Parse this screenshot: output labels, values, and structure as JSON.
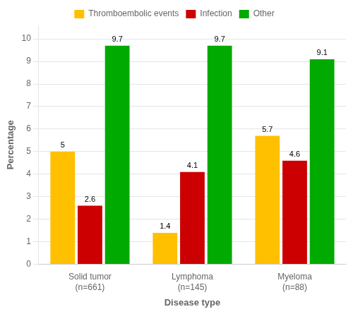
{
  "chart_data": {
    "type": "bar",
    "xlabel": "Disease type",
    "ylabel": "Percentage",
    "categories": [
      "Solid tumor\n(n=661)",
      "Lymphoma\n(n=145)",
      "Myeloma\n(n=88)"
    ],
    "series": [
      {
        "name": "Thromboembolic events",
        "color": "#FFC000",
        "values": [
          5.0,
          1.4,
          5.7
        ]
      },
      {
        "name": "Infection",
        "color": "#CC0000",
        "values": [
          2.6,
          4.1,
          4.6
        ]
      },
      {
        "name": "Other",
        "color": "#00AA00",
        "values": [
          9.7,
          9.7,
          9.1
        ]
      }
    ],
    "ylim": [
      0,
      10.6
    ],
    "yticks": [
      0,
      1,
      2,
      3,
      4,
      5,
      6,
      7,
      8,
      9,
      10
    ],
    "grid": true,
    "legend": "top",
    "data_labels": true
  }
}
